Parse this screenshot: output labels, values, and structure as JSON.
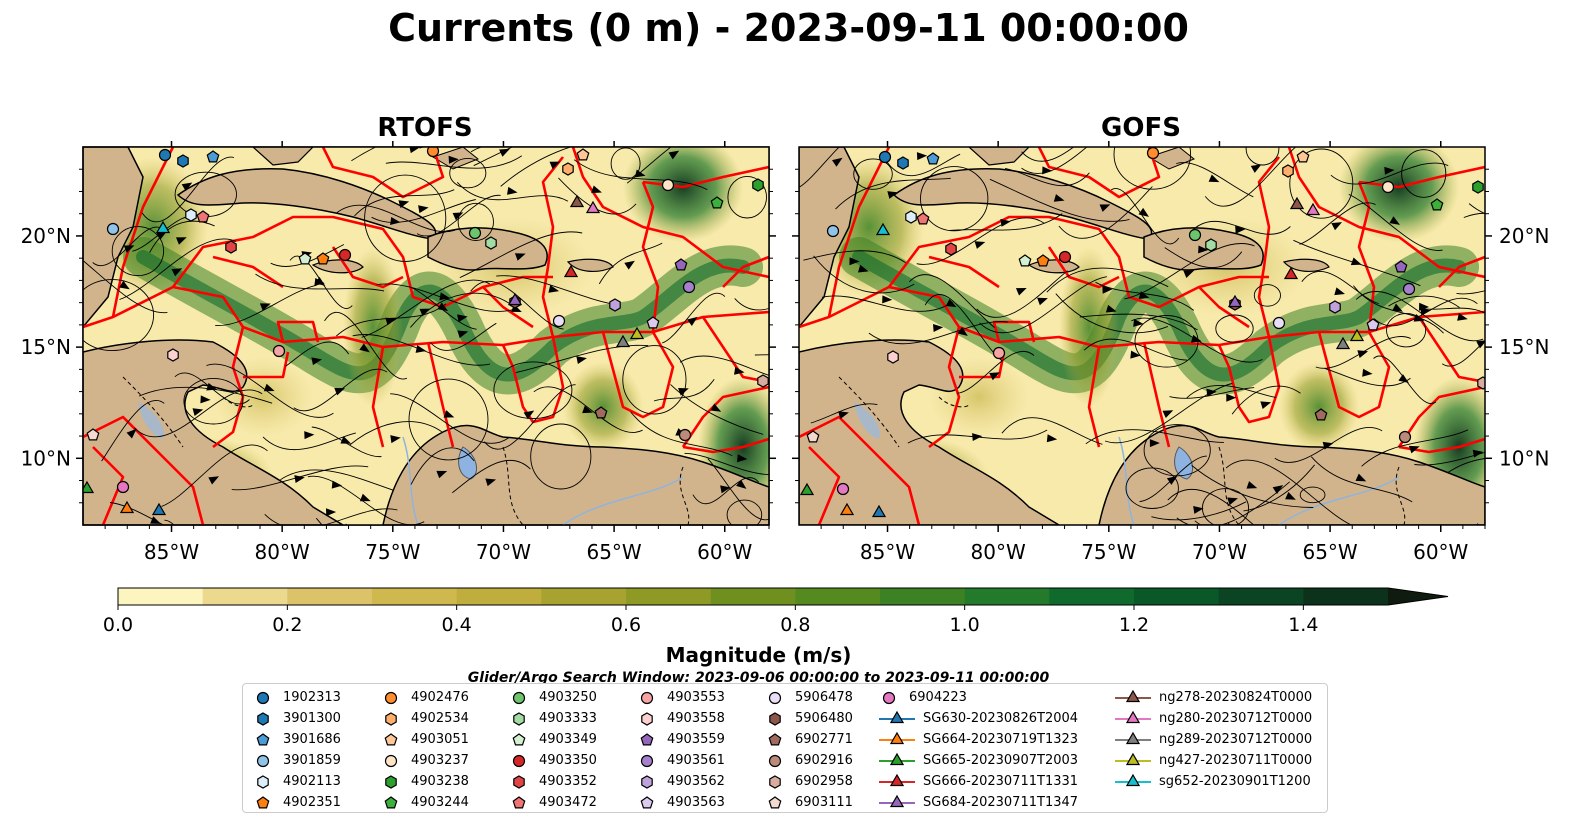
{
  "title": "Currents (0 m) - 2023-09-11 00:00:00",
  "panels": [
    {
      "name": "RTOFS"
    },
    {
      "name": "GOFS"
    }
  ],
  "map": {
    "lon_range": [
      -89,
      -58
    ],
    "lat_range": [
      7,
      24
    ],
    "lon_ticks": [
      "85°W",
      "80°W",
      "75°W",
      "70°W",
      "65°W",
      "60°W"
    ],
    "lat_ticks": [
      "20°N",
      "15°N",
      "10°N"
    ],
    "land_color": "#d2b48c",
    "boundary_color": "#ff0000"
  },
  "colorbar": {
    "label": "Magnitude (m/s)",
    "min": 0.0,
    "max": 1.5,
    "extend": "max",
    "ticks": [
      "0.0",
      "0.2",
      "0.4",
      "0.6",
      "0.8",
      "1.0",
      "1.2",
      "1.4"
    ],
    "colors": [
      "#fdf5bf",
      "#ecd98e",
      "#dcc369",
      "#cfb84e",
      "#bfae3e",
      "#a8a331",
      "#8e9926",
      "#6f901f",
      "#558a20",
      "#3c8224",
      "#247a2b",
      "#116a2d",
      "#0a5728",
      "#0b4422",
      "#0c321b"
    ],
    "arrow_color": "#101b10"
  },
  "search_window": "Glider/Argo Search Window: 2023-09-06 00:00:00 to 2023-09-11 00:00:00",
  "legend": {
    "columns": [
      [
        {
          "label": "1902313",
          "marker": "circle",
          "color": "#1f77b4"
        },
        {
          "label": "3901300",
          "marker": "hexagon",
          "color": "#1f77b4"
        },
        {
          "label": "3901686",
          "marker": "pentagon",
          "color": "#4a9bd6"
        },
        {
          "label": "3901859",
          "marker": "circle",
          "color": "#8fc3ea"
        },
        {
          "label": "4902113",
          "marker": "hexagon",
          "color": "#dbeefa"
        },
        {
          "label": "4902351",
          "marker": "pentagon",
          "color": "#ff7f0e"
        }
      ],
      [
        {
          "label": "4902476",
          "marker": "circle",
          "color": "#ff8c2e"
        },
        {
          "label": "4902534",
          "marker": "hexagon",
          "color": "#ffae6b"
        },
        {
          "label": "4903051",
          "marker": "pentagon",
          "color": "#ffc797"
        },
        {
          "label": "4903237",
          "marker": "circle",
          "color": "#ffe4c6"
        },
        {
          "label": "4903238",
          "marker": "hexagon",
          "color": "#2ca02c"
        },
        {
          "label": "4903244",
          "marker": "pentagon",
          "color": "#3bb03b"
        }
      ],
      [
        {
          "label": "4903250",
          "marker": "circle",
          "color": "#6cc56c"
        },
        {
          "label": "4903333",
          "marker": "hexagon",
          "color": "#a3dca3"
        },
        {
          "label": "4903349",
          "marker": "pentagon",
          "color": "#d3f0d0"
        },
        {
          "label": "4903350",
          "marker": "circle",
          "color": "#d62728"
        },
        {
          "label": "4903352",
          "marker": "hexagon",
          "color": "#e04444"
        },
        {
          "label": "4903472",
          "marker": "pentagon",
          "color": "#ef7474"
        }
      ],
      [
        {
          "label": "4903553",
          "marker": "circle",
          "color": "#f5a3a3"
        },
        {
          "label": "4903558",
          "marker": "hexagon",
          "color": "#fbd0cf"
        },
        {
          "label": "4903559",
          "marker": "pentagon",
          "color": "#9467bd"
        },
        {
          "label": "4903561",
          "marker": "circle",
          "color": "#a680cc"
        },
        {
          "label": "4903562",
          "marker": "hexagon",
          "color": "#bfa2dc"
        },
        {
          "label": "4903563",
          "marker": "pentagon",
          "color": "#dccaee"
        }
      ],
      [
        {
          "label": "5906478",
          "marker": "circle",
          "color": "#e9ddf7"
        },
        {
          "label": "5906480",
          "marker": "hexagon",
          "color": "#8c564b"
        },
        {
          "label": "6902771",
          "marker": "pentagon",
          "color": "#a06b5e"
        },
        {
          "label": "6902916",
          "marker": "circle",
          "color": "#bb8a7a"
        },
        {
          "label": "6902958",
          "marker": "hexagon",
          "color": "#d8ac9e"
        },
        {
          "label": "6903111",
          "marker": "pentagon",
          "color": "#f3d9d0"
        }
      ],
      [
        {
          "label": "6904223",
          "marker": "circle",
          "color": "#e377c2"
        },
        {
          "label": "SG630-20230826T2004",
          "marker": "triangle",
          "color": "#1f77b4"
        },
        {
          "label": "SG664-20230719T1323",
          "marker": "triangle",
          "color": "#ff7f0e"
        },
        {
          "label": "SG665-20230907T2003",
          "marker": "triangle",
          "color": "#2ca02c"
        },
        {
          "label": "SG666-20230711T1331",
          "marker": "triangle",
          "color": "#d62728"
        },
        {
          "label": "SG684-20230711T1347",
          "marker": "triangle",
          "color": "#9467bd"
        }
      ],
      [
        {
          "label": "ng278-20230824T0000",
          "marker": "triangle",
          "color": "#8c564b"
        },
        {
          "label": "ng280-20230712T0000",
          "marker": "triangle",
          "color": "#e377c2"
        },
        {
          "label": "ng289-20230712T0000",
          "marker": "triangle",
          "color": "#7f7f7f"
        },
        {
          "label": "ng427-20230711T0000",
          "marker": "triangle",
          "color": "#bcbd22"
        },
        {
          "label": "sg652-20230901T1200",
          "marker": "triangle",
          "color": "#17becf"
        }
      ]
    ]
  }
}
